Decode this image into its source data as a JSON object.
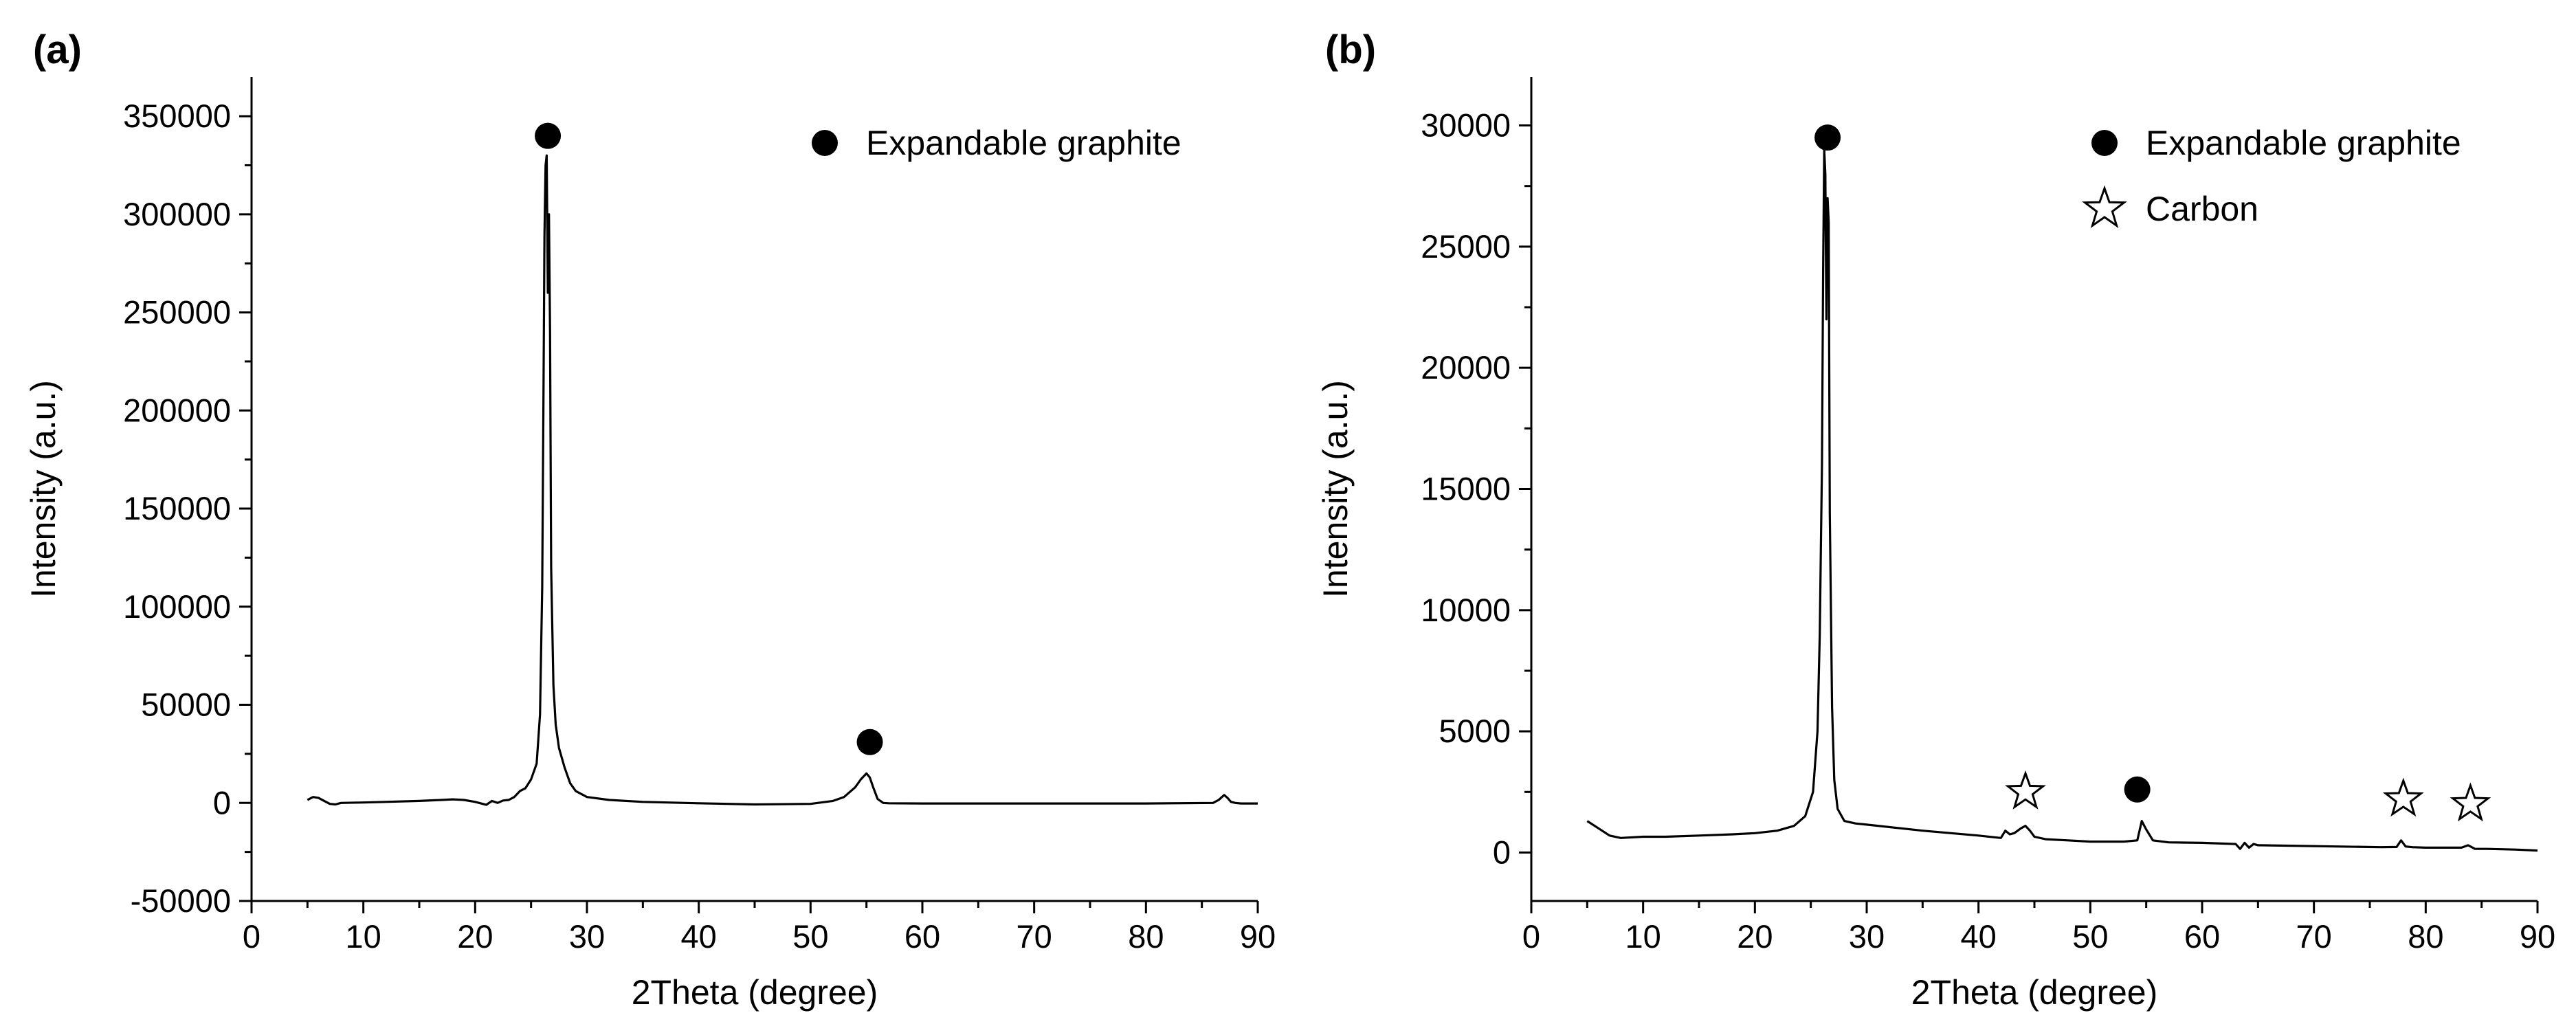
{
  "chart_data": [
    {
      "panel": "(a)",
      "type": "line",
      "xlabel": "2Theta (degree)",
      "ylabel": "Intensity (a.u.)",
      "xlim": [
        0,
        90
      ],
      "ylim": [
        -50000,
        370000
      ],
      "xticks": [
        0,
        10,
        20,
        30,
        40,
        50,
        60,
        70,
        80,
        90
      ],
      "yticks": [
        -50000,
        0,
        50000,
        100000,
        150000,
        200000,
        250000,
        300000,
        350000
      ],
      "grid": false,
      "legend": {
        "placement": "top-right",
        "entries": [
          {
            "marker": "dot",
            "label": "Expandable graphite"
          }
        ]
      },
      "series": [
        {
          "x": [
            5,
            5.5,
            6,
            6.5,
            7,
            7.5,
            8,
            10,
            12,
            15,
            17,
            18,
            19,
            20,
            21,
            21.5,
            22,
            22.5,
            23,
            23.5,
            24,
            24.5,
            25,
            25.5,
            25.8,
            26.0,
            26.1,
            26.2,
            26.3,
            26.4,
            26.5,
            26.6,
            26.7,
            26.8,
            27.0,
            27.2,
            27.5,
            28.0,
            28.5,
            29,
            30,
            32,
            35,
            40,
            45,
            50,
            52,
            53,
            54,
            54.5,
            55,
            55.3,
            55.6,
            56,
            56.5,
            57,
            60,
            70,
            80,
            86,
            86.5,
            87,
            87.3,
            87.6,
            88,
            88.5,
            90
          ],
          "y": [
            1500,
            3000,
            2500,
            1000,
            -500,
            -800,
            0,
            200,
            500,
            1000,
            1500,
            1800,
            1500,
            500,
            -1000,
            1000,
            0,
            1200,
            1500,
            3000,
            6000,
            7500,
            12000,
            20000,
            45000,
            110000,
            200000,
            290000,
            325000,
            330000,
            260000,
            300000,
            240000,
            120000,
            60000,
            40000,
            28000,
            18000,
            10000,
            6000,
            3000,
            1500,
            500,
            -200,
            -800,
            -500,
            1000,
            3000,
            8000,
            12000,
            15000,
            13000,
            8000,
            2000,
            0,
            -200,
            -300,
            -300,
            -300,
            0,
            1500,
            4000,
            2500,
            500,
            0,
            -300,
            -300
          ]
        }
      ],
      "peak_markers": [
        {
          "marker": "dot",
          "x": 26.5,
          "y": 340000
        },
        {
          "marker": "dot",
          "x": 55.3,
          "y": 31000
        }
      ]
    },
    {
      "panel": "(b)",
      "type": "line",
      "xlabel": "2Theta (degree)",
      "ylabel": "Intensity (a.u.)",
      "xlim": [
        0,
        90
      ],
      "ylim": [
        -2000,
        32000
      ],
      "xticks": [
        0,
        10,
        20,
        30,
        40,
        50,
        60,
        70,
        80,
        90
      ],
      "yticks": [
        0,
        5000,
        10000,
        15000,
        20000,
        25000,
        30000
      ],
      "grid": false,
      "legend": {
        "placement": "top-right",
        "entries": [
          {
            "marker": "dot",
            "label": "Expandable graphite"
          },
          {
            "marker": "star",
            "label": "Carbon"
          }
        ]
      },
      "series": [
        {
          "x": [
            5,
            6,
            7,
            8,
            10,
            12,
            15,
            18,
            20,
            22,
            23.5,
            24.5,
            25.2,
            25.6,
            25.8,
            26.0,
            26.1,
            26.2,
            26.3,
            26.4,
            26.5,
            26.6,
            26.7,
            26.9,
            27.1,
            27.4,
            28,
            29,
            30,
            35,
            40,
            42,
            42.4,
            42.8,
            43.2,
            43.8,
            44.2,
            44.6,
            45,
            46,
            48,
            50,
            53,
            54.2,
            54.6,
            55.0,
            55.6,
            57,
            60,
            63,
            63.4,
            63.8,
            64.2,
            64.6,
            65,
            68,
            72,
            76,
            77.4,
            77.8,
            78.2,
            78.8,
            80,
            83.2,
            83.8,
            84.4,
            85.5,
            88,
            90
          ],
          "y": [
            1300,
            1000,
            700,
            600,
            650,
            650,
            700,
            750,
            800,
            900,
            1100,
            1500,
            2500,
            5000,
            9000,
            16000,
            24000,
            29000,
            28000,
            22000,
            27000,
            26000,
            14000,
            6000,
            3000,
            1800,
            1300,
            1200,
            1150,
            900,
            700,
            600,
            900,
            750,
            800,
            1000,
            1100,
            900,
            650,
            550,
            500,
            450,
            450,
            500,
            1300,
            950,
            500,
            420,
            400,
            350,
            150,
            400,
            200,
            350,
            300,
            280,
            250,
            220,
            230,
            500,
            250,
            220,
            200,
            200,
            300,
            150,
            150,
            120,
            80
          ]
        }
      ],
      "peak_markers": [
        {
          "marker": "dot",
          "x": 26.5,
          "y": 29500
        },
        {
          "marker": "star",
          "x": 44.2,
          "y": 2500
        },
        {
          "marker": "dot",
          "x": 54.2,
          "y": 2600
        },
        {
          "marker": "star",
          "x": 78.0,
          "y": 2200
        },
        {
          "marker": "star",
          "x": 84.0,
          "y": 2000
        }
      ]
    }
  ]
}
